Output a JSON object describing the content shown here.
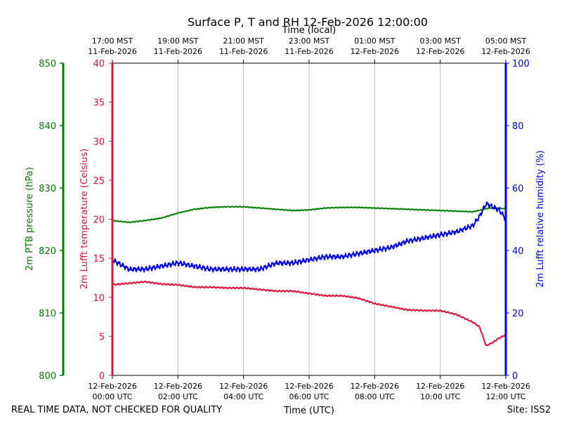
{
  "chart_data": {
    "type": "line",
    "title": "Surface P, T and RH 12-Feb-2026 12:00:00",
    "top_axis_label": "Time (local)",
    "bottom_axis_label": "Time (UTC)",
    "x_range_hours_utc": [
      0,
      12
    ],
    "x_ticks": [
      {
        "hour": 0,
        "utc_date": "12-Feb-2026",
        "utc_time": "00:00 UTC"
      },
      {
        "hour": 2,
        "utc_date": "12-Feb-2026",
        "utc_time": "02:00 UTC"
      },
      {
        "hour": 4,
        "utc_date": "12-Feb-2026",
        "utc_time": "04:00 UTC"
      },
      {
        "hour": 6,
        "utc_date": "12-Feb-2026",
        "utc_time": "06:00 UTC"
      },
      {
        "hour": 8,
        "utc_date": "12-Feb-2026",
        "utc_time": "08:00 UTC"
      },
      {
        "hour": 10,
        "utc_date": "12-Feb-2026",
        "utc_time": "10:00 UTC"
      },
      {
        "hour": 12,
        "utc_date": "12-Feb-2026",
        "utc_time": "12:00 UTC"
      }
    ],
    "top_ticks": [
      {
        "hour": 0,
        "local_time": "17:00 MST",
        "local_date": "11-Feb-2026"
      },
      {
        "hour": 2,
        "local_time": "19:00 MST",
        "local_date": "11-Feb-2026"
      },
      {
        "hour": 4,
        "local_time": "21:00 MST",
        "local_date": "11-Feb-2026"
      },
      {
        "hour": 6,
        "local_time": "23:00 MST",
        "local_date": "11-Feb-2026"
      },
      {
        "hour": 8,
        "local_time": "01:00 MST",
        "local_date": "12-Feb-2026"
      },
      {
        "hour": 10,
        "local_time": "03:00 MST",
        "local_date": "12-Feb-2026"
      },
      {
        "hour": 12,
        "local_time": "05:00 MST",
        "local_date": "12-Feb-2026"
      }
    ],
    "axes": {
      "pressure": {
        "label": "2m PTB pressure (hPa)",
        "ylim": [
          800,
          850
        ],
        "ticks": [
          800,
          810,
          820,
          830,
          840,
          850
        ],
        "color": "#008000"
      },
      "temperature": {
        "label": "2m Lufft temperature (Celsius)",
        "ylim": [
          0,
          40
        ],
        "ticks": [
          0,
          5,
          10,
          15,
          20,
          25,
          30,
          35,
          40
        ],
        "color": "#dc143c"
      },
      "humidity": {
        "label": "2m Lufft relative humidity (%)",
        "ylim": [
          0,
          100
        ],
        "ticks": [
          0,
          20,
          40,
          60,
          80,
          100
        ],
        "color": "#0000ee"
      }
    },
    "series": [
      {
        "name": "2m PTB pressure",
        "axis": "pressure",
        "color": "#008000",
        "x": [
          0,
          0.5,
          1,
          1.5,
          2,
          2.5,
          3,
          3.5,
          4,
          4.5,
          5,
          5.5,
          6,
          6.5,
          7,
          7.5,
          8,
          8.5,
          9,
          9.5,
          10,
          10.5,
          11,
          11.5,
          12
        ],
        "y": [
          824.8,
          824.5,
          824.8,
          825.2,
          826.0,
          826.6,
          826.9,
          827.0,
          827.0,
          826.8,
          826.6,
          826.4,
          826.5,
          826.8,
          826.9,
          826.9,
          826.8,
          826.7,
          826.6,
          826.5,
          826.4,
          826.3,
          826.2,
          826.8,
          826.7
        ]
      },
      {
        "name": "2m Lufft temperature",
        "axis": "temperature",
        "color": "#dc143c",
        "x": [
          0,
          0.5,
          1,
          1.5,
          2,
          2.5,
          3,
          3.5,
          4,
          4.5,
          5,
          5.5,
          6,
          6.5,
          7,
          7.5,
          8,
          8.5,
          9,
          9.5,
          10,
          10.5,
          11,
          11.2,
          11.4,
          11.6,
          11.8,
          12
        ],
        "y": [
          11.6,
          11.8,
          12.0,
          11.7,
          11.6,
          11.3,
          11.3,
          11.2,
          11.2,
          11.0,
          10.8,
          10.8,
          10.5,
          10.2,
          10.2,
          9.9,
          9.2,
          8.8,
          8.4,
          8.3,
          8.3,
          7.8,
          6.8,
          6.2,
          3.8,
          4.2,
          4.8,
          5.2
        ]
      },
      {
        "name": "2m Lufft relative humidity",
        "axis": "humidity",
        "color": "#0000ee",
        "x": [
          0,
          0.5,
          1,
          1.5,
          2,
          2.5,
          3,
          3.5,
          4,
          4.5,
          5,
          5.5,
          6,
          6.5,
          7,
          7.5,
          8,
          8.5,
          9,
          9.5,
          10,
          10.5,
          11,
          11.2,
          11.4,
          11.6,
          11.8,
          12
        ],
        "y": [
          37,
          34,
          34,
          35,
          36,
          35,
          34,
          34,
          34,
          34,
          36,
          36,
          37,
          38,
          38,
          39,
          40,
          41,
          43,
          44,
          45,
          46,
          48,
          51,
          55,
          54,
          53,
          50
        ]
      }
    ]
  },
  "footer": {
    "left_note": "REAL TIME DATA, NOT CHECKED FOR QUALITY",
    "site": "Site: ISS2"
  }
}
